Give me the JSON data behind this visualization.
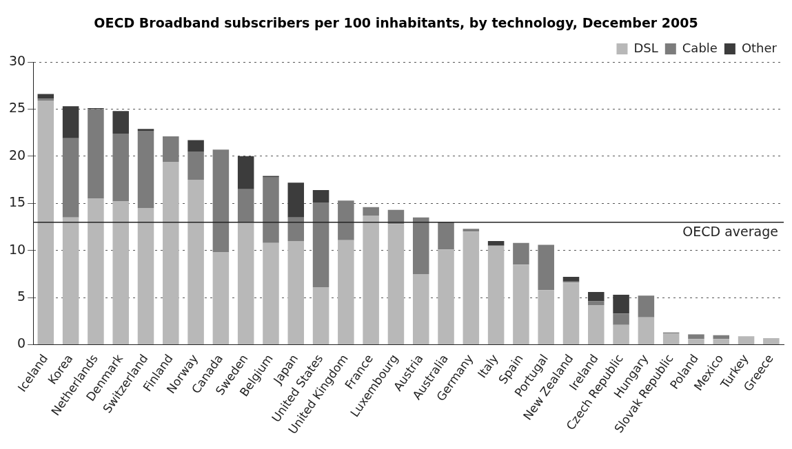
{
  "chart_data": {
    "type": "bar",
    "title": "OECD Broadband subscribers per 100 inhabitants, by technology, December 2005",
    "categories": [
      "Iceland",
      "Korea",
      "Netherlands",
      "Denmark",
      "Switzerland",
      "Finland",
      "Norway",
      "Canada",
      "Sweden",
      "Belgium",
      "Japan",
      "United States",
      "United Kingdom",
      "France",
      "Luxembourg",
      "Austria",
      "Australia",
      "Germany",
      "Italy",
      "Spain",
      "Portugal",
      "New Zealand",
      "Ireland",
      "Czech Republic",
      "Hungary",
      "Slovak Republic",
      "Poland",
      "Mexico",
      "Turkey",
      "Greece"
    ],
    "series": [
      {
        "name": "DSL",
        "color": "#b8b8b8",
        "values": [
          25.9,
          13.5,
          15.5,
          15.2,
          14.5,
          19.4,
          17.5,
          9.8,
          13.0,
          10.8,
          11.0,
          6.1,
          11.1,
          13.7,
          12.8,
          7.5,
          10.1,
          12.0,
          10.5,
          8.5,
          5.8,
          6.6,
          4.2,
          2.1,
          2.9,
          1.2,
          0.6,
          0.6,
          0.9,
          0.7
        ]
      },
      {
        "name": "Cable",
        "color": "#7c7c7c",
        "values": [
          0.2,
          8.4,
          9.5,
          7.2,
          8.2,
          2.7,
          3.0,
          10.9,
          3.5,
          7.0,
          2.5,
          9.0,
          4.2,
          0.9,
          1.5,
          6.0,
          2.9,
          0.3,
          0,
          2.3,
          4.8,
          0.1,
          0.4,
          1.2,
          2.3,
          0.1,
          0.5,
          0.4,
          0,
          0
        ]
      },
      {
        "name": "Other",
        "color": "#3c3c3c",
        "values": [
          0.5,
          3.4,
          0.1,
          2.4,
          0.2,
          0,
          1.2,
          0,
          3.5,
          0.1,
          3.7,
          1.3,
          0,
          0,
          0,
          0,
          0,
          0,
          0.5,
          0,
          0,
          0.5,
          1.0,
          2.0,
          0,
          0,
          0,
          0,
          0,
          0
        ]
      }
    ],
    "stacked": true,
    "ylim": [
      0,
      30
    ],
    "yticks": [
      0,
      5,
      10,
      15,
      20,
      25,
      30
    ],
    "grid": "y",
    "legend": "top right",
    "ref_lines": [
      {
        "axis": "y",
        "value": 13,
        "label": "OECD average",
        "color": "#222222"
      }
    ]
  }
}
